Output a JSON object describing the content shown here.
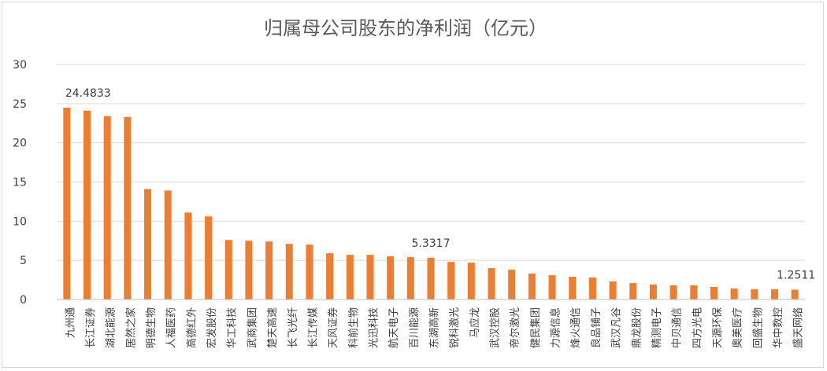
{
  "chart_data": {
    "type": "bar",
    "title": "归属母公司股东的净利润（亿元）",
    "xlabel": "",
    "ylabel": "",
    "ylim": [
      0,
      30
    ],
    "yticks": [
      0,
      5,
      10,
      15,
      20,
      25,
      30
    ],
    "grid": true,
    "legend": "none",
    "bar_color": "#ED7D31",
    "categories": [
      "九州通",
      "长江证券",
      "湖北能源",
      "居然之家",
      "明德生物",
      "人福医药",
      "高德红外",
      "宏发股份",
      "华工科技",
      "武商集团",
      "楚天高速",
      "长飞光纤",
      "长江传媒",
      "天风证券",
      "科前生物",
      "光迅科技",
      "航天电子",
      "百川能源",
      "东湖高新",
      "锐科激光",
      "马应龙",
      "武汉控股",
      "帝尔激光",
      "健民集团",
      "力源信息",
      "烽火通信",
      "良品铺子",
      "武汉凡谷",
      "鼎龙股份",
      "精测电子",
      "中贝通信",
      "四方光电",
      "天源环保",
      "奥美医疗",
      "回盛生物",
      "华中数控",
      "盛天网络"
    ],
    "values": [
      24.4833,
      24.1,
      23.4,
      23.3,
      14.1,
      13.9,
      11.1,
      10.6,
      7.6,
      7.5,
      7.4,
      7.1,
      7.0,
      5.9,
      5.7,
      5.7,
      5.5,
      5.4,
      5.3317,
      4.8,
      4.7,
      4.0,
      3.8,
      3.3,
      3.1,
      2.9,
      2.8,
      2.3,
      2.1,
      1.9,
      1.8,
      1.8,
      1.6,
      1.4,
      1.3,
      1.3,
      1.2511
    ],
    "data_labels": [
      {
        "index": 0,
        "text": "24.4833"
      },
      {
        "index": 18,
        "text": "5.3317"
      },
      {
        "index": 36,
        "text": "1.2511"
      }
    ]
  }
}
